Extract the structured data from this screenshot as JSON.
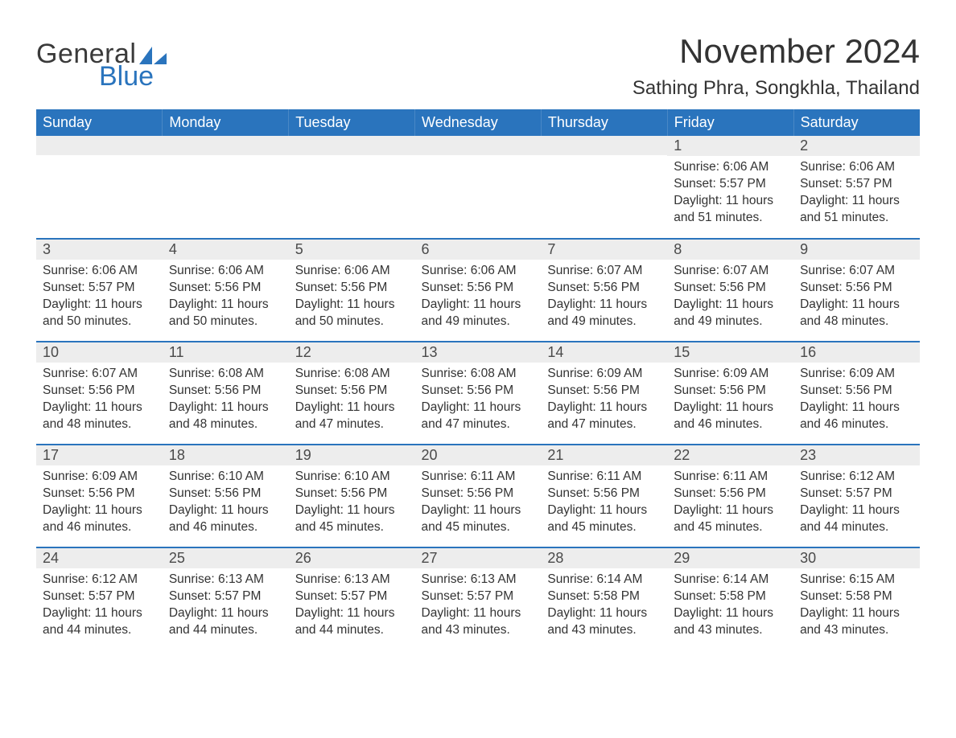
{
  "logo": {
    "text_general": "General",
    "text_blue": "Blue",
    "shape_color": "#2a74bd"
  },
  "header": {
    "month_title": "November 2024",
    "location": "Sathing Phra, Songkhla, Thailand"
  },
  "styling": {
    "header_bg": "#2a74bd",
    "header_text": "#ffffff",
    "daynum_bg": "#ededed",
    "daynum_text": "#4a4a4a",
    "body_text": "#333333",
    "row_border": "#2a74bd",
    "page_bg": "#ffffff",
    "title_fontsize": 42,
    "location_fontsize": 24,
    "weekday_fontsize": 18,
    "daynum_fontsize": 18,
    "body_fontsize": 15.5
  },
  "calendar": {
    "weekdays": [
      "Sunday",
      "Monday",
      "Tuesday",
      "Wednesday",
      "Thursday",
      "Friday",
      "Saturday"
    ],
    "weeks": [
      [
        {
          "day": "",
          "sunrise": "",
          "sunset": "",
          "daylight": ""
        },
        {
          "day": "",
          "sunrise": "",
          "sunset": "",
          "daylight": ""
        },
        {
          "day": "",
          "sunrise": "",
          "sunset": "",
          "daylight": ""
        },
        {
          "day": "",
          "sunrise": "",
          "sunset": "",
          "daylight": ""
        },
        {
          "day": "",
          "sunrise": "",
          "sunset": "",
          "daylight": ""
        },
        {
          "day": "1",
          "sunrise": "Sunrise: 6:06 AM",
          "sunset": "Sunset: 5:57 PM",
          "daylight": "Daylight: 11 hours and 51 minutes."
        },
        {
          "day": "2",
          "sunrise": "Sunrise: 6:06 AM",
          "sunset": "Sunset: 5:57 PM",
          "daylight": "Daylight: 11 hours and 51 minutes."
        }
      ],
      [
        {
          "day": "3",
          "sunrise": "Sunrise: 6:06 AM",
          "sunset": "Sunset: 5:57 PM",
          "daylight": "Daylight: 11 hours and 50 minutes."
        },
        {
          "day": "4",
          "sunrise": "Sunrise: 6:06 AM",
          "sunset": "Sunset: 5:56 PM",
          "daylight": "Daylight: 11 hours and 50 minutes."
        },
        {
          "day": "5",
          "sunrise": "Sunrise: 6:06 AM",
          "sunset": "Sunset: 5:56 PM",
          "daylight": "Daylight: 11 hours and 50 minutes."
        },
        {
          "day": "6",
          "sunrise": "Sunrise: 6:06 AM",
          "sunset": "Sunset: 5:56 PM",
          "daylight": "Daylight: 11 hours and 49 minutes."
        },
        {
          "day": "7",
          "sunrise": "Sunrise: 6:07 AM",
          "sunset": "Sunset: 5:56 PM",
          "daylight": "Daylight: 11 hours and 49 minutes."
        },
        {
          "day": "8",
          "sunrise": "Sunrise: 6:07 AM",
          "sunset": "Sunset: 5:56 PM",
          "daylight": "Daylight: 11 hours and 49 minutes."
        },
        {
          "day": "9",
          "sunrise": "Sunrise: 6:07 AM",
          "sunset": "Sunset: 5:56 PM",
          "daylight": "Daylight: 11 hours and 48 minutes."
        }
      ],
      [
        {
          "day": "10",
          "sunrise": "Sunrise: 6:07 AM",
          "sunset": "Sunset: 5:56 PM",
          "daylight": "Daylight: 11 hours and 48 minutes."
        },
        {
          "day": "11",
          "sunrise": "Sunrise: 6:08 AM",
          "sunset": "Sunset: 5:56 PM",
          "daylight": "Daylight: 11 hours and 48 minutes."
        },
        {
          "day": "12",
          "sunrise": "Sunrise: 6:08 AM",
          "sunset": "Sunset: 5:56 PM",
          "daylight": "Daylight: 11 hours and 47 minutes."
        },
        {
          "day": "13",
          "sunrise": "Sunrise: 6:08 AM",
          "sunset": "Sunset: 5:56 PM",
          "daylight": "Daylight: 11 hours and 47 minutes."
        },
        {
          "day": "14",
          "sunrise": "Sunrise: 6:09 AM",
          "sunset": "Sunset: 5:56 PM",
          "daylight": "Daylight: 11 hours and 47 minutes."
        },
        {
          "day": "15",
          "sunrise": "Sunrise: 6:09 AM",
          "sunset": "Sunset: 5:56 PM",
          "daylight": "Daylight: 11 hours and 46 minutes."
        },
        {
          "day": "16",
          "sunrise": "Sunrise: 6:09 AM",
          "sunset": "Sunset: 5:56 PM",
          "daylight": "Daylight: 11 hours and 46 minutes."
        }
      ],
      [
        {
          "day": "17",
          "sunrise": "Sunrise: 6:09 AM",
          "sunset": "Sunset: 5:56 PM",
          "daylight": "Daylight: 11 hours and 46 minutes."
        },
        {
          "day": "18",
          "sunrise": "Sunrise: 6:10 AM",
          "sunset": "Sunset: 5:56 PM",
          "daylight": "Daylight: 11 hours and 46 minutes."
        },
        {
          "day": "19",
          "sunrise": "Sunrise: 6:10 AM",
          "sunset": "Sunset: 5:56 PM",
          "daylight": "Daylight: 11 hours and 45 minutes."
        },
        {
          "day": "20",
          "sunrise": "Sunrise: 6:11 AM",
          "sunset": "Sunset: 5:56 PM",
          "daylight": "Daylight: 11 hours and 45 minutes."
        },
        {
          "day": "21",
          "sunrise": "Sunrise: 6:11 AM",
          "sunset": "Sunset: 5:56 PM",
          "daylight": "Daylight: 11 hours and 45 minutes."
        },
        {
          "day": "22",
          "sunrise": "Sunrise: 6:11 AM",
          "sunset": "Sunset: 5:56 PM",
          "daylight": "Daylight: 11 hours and 45 minutes."
        },
        {
          "day": "23",
          "sunrise": "Sunrise: 6:12 AM",
          "sunset": "Sunset: 5:57 PM",
          "daylight": "Daylight: 11 hours and 44 minutes."
        }
      ],
      [
        {
          "day": "24",
          "sunrise": "Sunrise: 6:12 AM",
          "sunset": "Sunset: 5:57 PM",
          "daylight": "Daylight: 11 hours and 44 minutes."
        },
        {
          "day": "25",
          "sunrise": "Sunrise: 6:13 AM",
          "sunset": "Sunset: 5:57 PM",
          "daylight": "Daylight: 11 hours and 44 minutes."
        },
        {
          "day": "26",
          "sunrise": "Sunrise: 6:13 AM",
          "sunset": "Sunset: 5:57 PM",
          "daylight": "Daylight: 11 hours and 44 minutes."
        },
        {
          "day": "27",
          "sunrise": "Sunrise: 6:13 AM",
          "sunset": "Sunset: 5:57 PM",
          "daylight": "Daylight: 11 hours and 43 minutes."
        },
        {
          "day": "28",
          "sunrise": "Sunrise: 6:14 AM",
          "sunset": "Sunset: 5:58 PM",
          "daylight": "Daylight: 11 hours and 43 minutes."
        },
        {
          "day": "29",
          "sunrise": "Sunrise: 6:14 AM",
          "sunset": "Sunset: 5:58 PM",
          "daylight": "Daylight: 11 hours and 43 minutes."
        },
        {
          "day": "30",
          "sunrise": "Sunrise: 6:15 AM",
          "sunset": "Sunset: 5:58 PM",
          "daylight": "Daylight: 11 hours and 43 minutes."
        }
      ]
    ]
  }
}
